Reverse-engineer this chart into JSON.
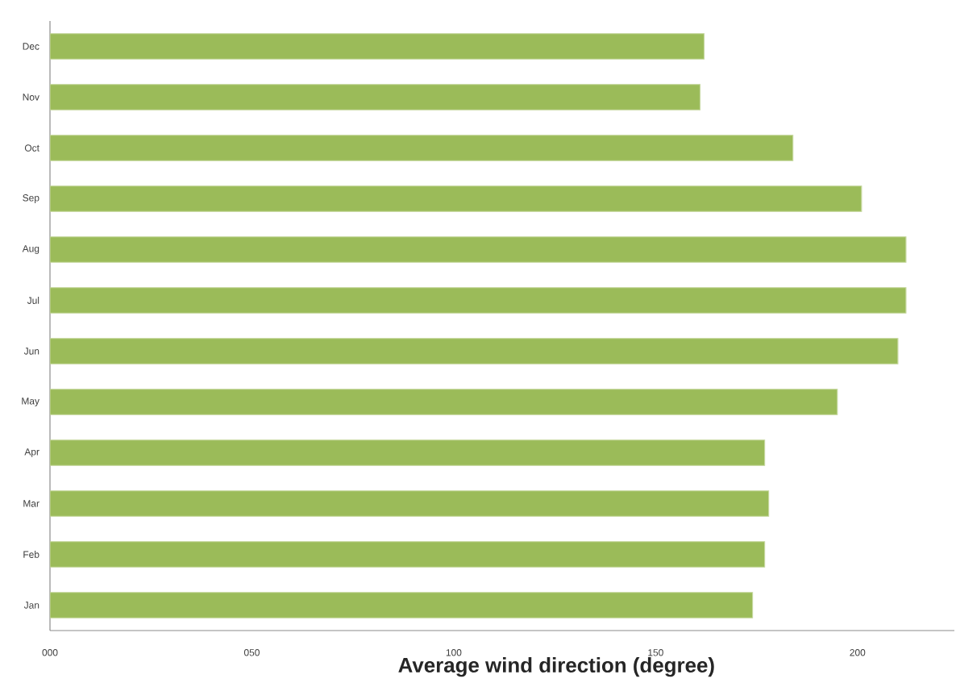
{
  "chart_data": {
    "type": "bar",
    "orientation": "horizontal",
    "categories": [
      "Dec",
      "Nov",
      "Oct",
      "Sep",
      "Aug",
      "Jul",
      "Jun",
      "May",
      "Apr",
      "Mar",
      "Feb",
      "Jan"
    ],
    "values": [
      162,
      161,
      184,
      201,
      212,
      212,
      210,
      195,
      177,
      178,
      177,
      174
    ],
    "color": "#9bbb59",
    "xlabel": "Average wind direction (degree)",
    "xlim": [
      0,
      224
    ],
    "xticks": [
      {
        "value": 0,
        "label": "000"
      },
      {
        "value": 50,
        "label": "050"
      },
      100,
      150,
      200
    ]
  }
}
